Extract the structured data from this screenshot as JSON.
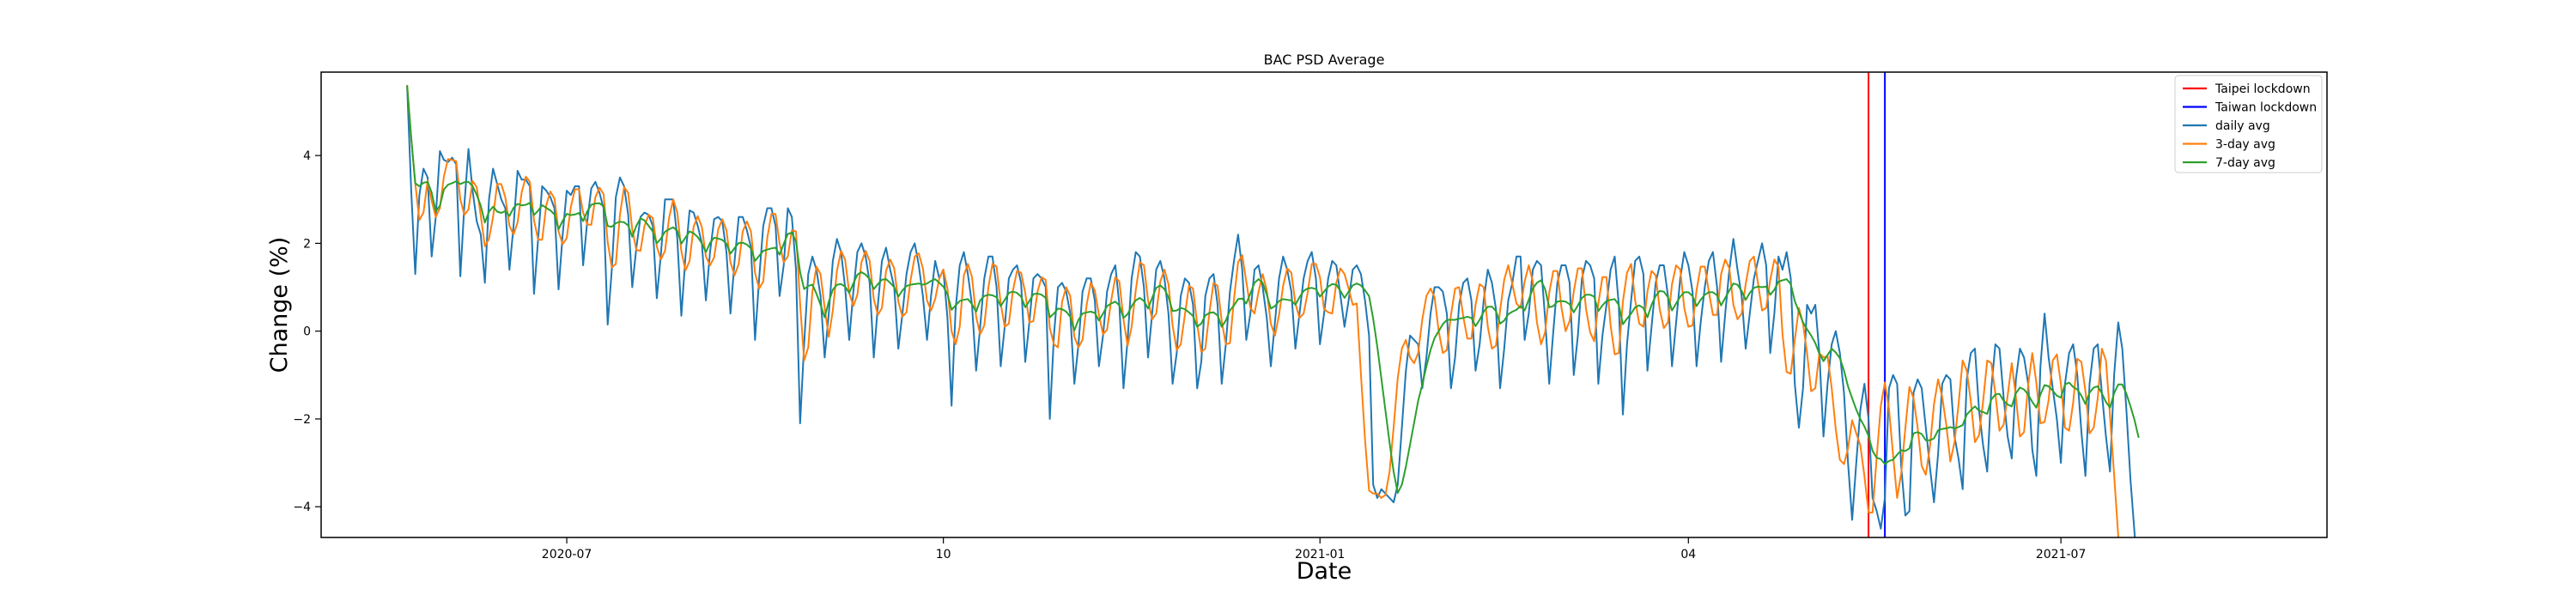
{
  "chart_data": {
    "type": "line",
    "title": "BAC PSD Average",
    "xlabel": "Date",
    "ylabel": "Change (%)",
    "x_range": [
      "2020-05-02",
      "2021-09-04"
    ],
    "ylim": [
      -4.7,
      5.9
    ],
    "x_ticks": [
      {
        "date": "2020-07-01",
        "label": "2020-07"
      },
      {
        "date": "2020-10-01",
        "label": "10"
      },
      {
        "date": "2021-01-01",
        "label": "2021-01"
      },
      {
        "date": "2021-04-01",
        "label": "04"
      },
      {
        "date": "2021-07-01",
        "label": "2021-07"
      }
    ],
    "y_ticks": [
      -4,
      -2,
      0,
      2,
      4
    ],
    "grid": false,
    "legend_position": "top-right",
    "vertical_lines": [
      {
        "name": "Taipei lockdown",
        "date": "2021-05-15",
        "color": "#ff0000"
      },
      {
        "name": "Taiwan lockdown",
        "date": "2021-05-19",
        "color": "#0000ff"
      }
    ],
    "series": [
      {
        "name": "daily avg",
        "color": "#1f77b4"
      },
      {
        "name": "3-day avg",
        "color": "#ff7f0e"
      },
      {
        "name": "7-day avg",
        "color": "#2ca02c"
      }
    ],
    "daily_start": "2020-05-23",
    "daily_values": [
      5.6,
      3.2,
      1.3,
      3.1,
      3.7,
      3.5,
      1.7,
      2.6,
      4.1,
      3.9,
      3.85,
      3.95,
      3.8,
      1.25,
      2.9,
      4.15,
      3.2,
      2.5,
      2.2,
      1.1,
      3.0,
      3.7,
      3.35,
      3.0,
      2.8,
      1.4,
      2.4,
      3.65,
      3.45,
      3.45,
      3.3,
      0.85,
      2.1,
      3.3,
      3.2,
      3.05,
      2.8,
      0.95,
      2.2,
      3.2,
      3.1,
      3.3,
      3.3,
      1.5,
      2.5,
      3.25,
      3.4,
      3.15,
      2.8,
      0.15,
      1.4,
      3.05,
      3.5,
      3.3,
      2.65,
      1.0,
      1.9,
      2.6,
      2.7,
      2.65,
      2.4,
      0.75,
      1.75,
      3.0,
      3.0,
      3.0,
      2.1,
      0.35,
      1.7,
      2.75,
      2.7,
      2.4,
      2.0,
      0.7,
      1.8,
      2.55,
      2.6,
      2.5,
      1.8,
      0.4,
      1.6,
      2.6,
      2.6,
      2.3,
      1.9,
      -0.2,
      1.2,
      2.4,
      2.8,
      2.8,
      2.4,
      0.8,
      1.5,
      2.8,
      2.6,
      1.4,
      -2.1,
      -0.3,
      1.3,
      1.7,
      1.4,
      0.8,
      -0.6,
      0.4,
      1.6,
      2.1,
      1.8,
      1.0,
      -0.2,
      0.9,
      1.8,
      2.0,
      1.7,
      1.1,
      -0.6,
      0.6,
      1.6,
      1.9,
      1.4,
      1.0,
      -0.4,
      0.4,
      1.3,
      1.8,
      2.0,
      1.5,
      0.8,
      -0.2,
      0.8,
      1.6,
      1.2,
      1.4,
      0.3,
      -1.7,
      0.5,
      1.5,
      1.8,
      1.3,
      0.6,
      -0.9,
      0.1,
      1.2,
      1.7,
      1.7,
      1.0,
      -0.8,
      0.1,
      1.2,
      1.4,
      1.5,
      1.1,
      -0.7,
      0.2,
      1.2,
      1.3,
      1.2,
      1.0,
      -2.0,
      -0.1,
      1.0,
      1.1,
      0.9,
      0.4,
      -1.2,
      -0.3,
      0.9,
      1.2,
      1.2,
      0.7,
      -0.8,
      -0.1,
      0.9,
      1.3,
      1.5,
      0.6,
      -1.3,
      -0.2,
      1.2,
      1.8,
      1.7,
      1.0,
      -0.6,
      0.4,
      1.4,
      1.6,
      1.2,
      0.4,
      -1.2,
      -0.5,
      0.8,
      1.2,
      1.1,
      0.6,
      -1.3,
      -0.7,
      0.8,
      1.2,
      1.3,
      0.6,
      -1.2,
      -0.3,
      0.9,
      1.6,
      2.2,
      1.4,
      -0.2,
      0.4,
      1.4,
      1.5,
      1.0,
      0.3,
      -0.8,
      0.2,
      1.2,
      1.7,
      1.4,
      0.9,
      -0.4,
      0.4,
      1.2,
      1.6,
      1.8,
      1.2,
      -0.3,
      0.4,
      1.2,
      1.6,
      1.5,
      0.8,
      0.1,
      0.7,
      1.4,
      1.5,
      1.3,
      0.7,
      -0.1,
      -3.5,
      -3.8,
      -3.6,
      -3.7,
      -3.8,
      -3.9,
      -3.5,
      -2.2,
      -0.9,
      -0.1,
      -0.2,
      -0.3,
      -1.3,
      -0.6,
      0.4,
      1.0,
      1.0,
      0.9,
      0.4,
      -1.3,
      -0.6,
      0.6,
      1.1,
      1.2,
      0.7,
      -0.9,
      -0.3,
      0.7,
      1.4,
      1.1,
      0.5,
      -1.3,
      -0.4,
      0.7,
      1.1,
      1.7,
      1.7,
      -0.2,
      0.4,
      1.4,
      1.6,
      1.5,
      0.3,
      -1.2,
      0.0,
      1.1,
      1.5,
      1.5,
      1.1,
      -1.0,
      -0.1,
      1.2,
      1.6,
      1.5,
      1.2,
      -1.2,
      -0.1,
      0.6,
      1.4,
      1.7,
      0.6,
      -1.9,
      -0.3,
      0.7,
      1.6,
      1.7,
      1.3,
      -0.9,
      0.1,
      1.1,
      1.5,
      1.5,
      0.8,
      -0.8,
      0.2,
      1.2,
      1.8,
      1.5,
      0.9,
      -0.8,
      0.2,
      1.0,
      1.6,
      1.8,
      1.0,
      -0.7,
      0.4,
      1.4,
      2.1,
      1.4,
      0.8,
      -0.4,
      0.4,
      1.2,
      1.6,
      2.0,
      1.5,
      -0.5,
      0.4,
      1.7,
      1.4,
      1.8,
      1.2,
      -1.2,
      -2.2,
      -1.3,
      0.6,
      0.4,
      0.6,
      -0.5,
      -2.4,
      -1.2,
      -0.3,
      0.0,
      -0.5,
      -1.4,
      -3.0,
      -4.3,
      -3.0,
      -1.8,
      -1.2,
      -2.0,
      -3.8,
      -4.1,
      -4.5,
      -3.8,
      -1.3,
      -1.0,
      -1.2,
      -3.1,
      -4.2,
      -4.1,
      -1.4,
      -1.1,
      -1.3,
      -2.2,
      -3.1,
      -3.9,
      -2.8,
      -1.2,
      -1.0,
      -1.1,
      -2.4,
      -2.9,
      -3.6,
      -1.1,
      -0.5,
      -0.4,
      -1.8,
      -2.6,
      -3.2,
      -1.3,
      -0.3,
      -0.4,
      -1.5,
      -2.4,
      -2.9,
      -1.1,
      -0.4,
      -0.6,
      -1.2,
      -2.7,
      -3.3,
      -0.8,
      0.4,
      -0.6,
      -1.3,
      -2.0,
      -3.0,
      -1.2,
      -0.5,
      -0.3,
      -1.0,
      -2.3,
      -3.3,
      -1.2,
      -0.4,
      -0.3,
      -1.4,
      -2.4,
      -3.2,
      -1.0,
      0.2,
      -0.4,
      -1.8,
      -3.4,
      -4.6,
      -6.0
    ],
    "avg3_start": "2020-05-23",
    "avg3_values": [
      5.6,
      4.4,
      3.37,
      2.53,
      2.7,
      3.43,
      2.97,
      2.6,
      2.8,
      3.53,
      3.92,
      3.9,
      3.87,
      3.0,
      2.65,
      2.77,
      3.42,
      3.28,
      2.63,
      1.93,
      2.1,
      2.6,
      3.35,
      3.35,
      3.05,
      2.4,
      2.2,
      2.48,
      3.17,
      3.52,
      3.4,
      2.53,
      2.08,
      2.08,
      2.87,
      3.18,
      3.02,
      2.27,
      1.98,
      2.12,
      2.83,
      3.23,
      3.23,
      2.7,
      2.43,
      2.42,
      3.05,
      3.27,
      3.12,
      2.03,
      1.45,
      1.53,
      2.65,
      3.28,
      3.15,
      2.32,
      1.85,
      1.83,
      2.4,
      2.65,
      2.58,
      1.93,
      1.63,
      1.83,
      2.58,
      3.0,
      2.7,
      1.82,
      1.38,
      1.6,
      2.38,
      2.62,
      2.37,
      1.7,
      1.5,
      1.68,
      2.32,
      2.55,
      2.3,
      1.57,
      1.27,
      1.53,
      2.27,
      2.5,
      2.27,
      1.33,
      0.97,
      1.13,
      2.13,
      2.67,
      2.67,
      2.0,
      1.57,
      1.7,
      2.3,
      2.27,
      0.63,
      -0.67,
      -0.37,
      0.9,
      1.47,
      1.3,
      0.53,
      -0.13,
      0.47,
      1.37,
      1.83,
      1.63,
      0.87,
      0.57,
      0.83,
      1.57,
      1.83,
      1.6,
      0.73,
      0.37,
      0.53,
      1.37,
      1.63,
      1.43,
      0.67,
      0.33,
      0.43,
      1.17,
      1.7,
      1.77,
      1.43,
      0.7,
      0.47,
      0.73,
      1.2,
      1.4,
      0.97,
      -0.0,
      -0.3,
      0.1,
      1.27,
      1.53,
      1.23,
      0.33,
      -0.07,
      0.13,
      1.0,
      1.53,
      1.47,
      0.63,
      0.1,
      0.17,
      0.93,
      1.37,
      1.33,
      0.87,
      0.2,
      0.23,
      0.9,
      1.23,
      1.17,
      0.07,
      -0.3,
      -0.37,
      0.67,
      1.0,
      0.8,
      -0.13,
      -0.37,
      -0.2,
      0.6,
      1.1,
      0.93,
      0.37,
      -0.07,
      0.03,
      0.7,
      1.23,
      1.13,
      0.27,
      -0.33,
      0.1,
      0.93,
      1.57,
      1.5,
      0.7,
      0.27,
      0.4,
      1.13,
      1.4,
      1.07,
      0.13,
      -0.43,
      -0.3,
      0.37,
      1.03,
      0.97,
      0.17,
      -0.47,
      -0.4,
      0.43,
      1.1,
      1.03,
      0.23,
      -0.3,
      -0.27,
      0.73,
      1.57,
      1.73,
      1.13,
      0.53,
      0.4,
      0.9,
      1.3,
      0.93,
      0.17,
      -0.1,
      0.37,
      1.03,
      1.43,
      1.33,
      0.63,
      0.3,
      0.4,
      0.87,
      1.53,
      1.53,
      1.23,
      0.5,
      0.43,
      0.4,
      1.1,
      1.43,
      1.3,
      0.97,
      0.6,
      0.63,
      -0.97,
      -2.47,
      -3.63,
      -3.7,
      -3.7,
      -3.8,
      -3.73,
      -3.2,
      -2.2,
      -1.07,
      -0.4,
      -0.2,
      -0.6,
      -0.73,
      -0.5,
      0.27,
      0.8,
      0.97,
      0.77,
      0.0,
      -0.5,
      -0.43,
      0.37,
      0.97,
      1.0,
      0.33,
      -0.17,
      -0.17,
      0.6,
      1.07,
      1.0,
      0.1,
      -0.4,
      -0.33,
      0.47,
      1.17,
      1.5,
      1.07,
      0.63,
      0.53,
      1.13,
      1.5,
      1.13,
      0.2,
      -0.3,
      -0.03,
      0.87,
      1.37,
      1.37,
      0.53,
      0.0,
      0.23,
      0.9,
      1.43,
      1.43,
      0.5,
      -0.03,
      -0.23,
      0.63,
      1.23,
      1.23,
      0.13,
      -0.53,
      -0.5,
      0.67,
      1.33,
      1.53,
      0.7,
      0.17,
      0.1,
      0.9,
      1.37,
      1.27,
      0.5,
      0.07,
      0.2,
      1.07,
      1.5,
      1.4,
      0.53,
      0.1,
      0.13,
      0.93,
      1.47,
      1.47,
      0.9,
      0.37,
      0.37,
      1.3,
      1.63,
      1.43,
      0.6,
      0.27,
      0.4,
      1.07,
      1.6,
      1.7,
      1.1,
      0.47,
      0.53,
      1.17,
      1.63,
      1.47,
      -0.07,
      -0.93,
      -0.97,
      -0.2,
      0.53,
      0.17,
      -0.5,
      -1.37,
      -1.3,
      -0.5,
      -0.6,
      -0.57,
      -1.3,
      -2.23,
      -2.93,
      -3.03,
      -2.67,
      -2.03,
      -2.33,
      -2.6,
      -3.3,
      -4.13,
      -4.13,
      -2.87,
      -1.7,
      -1.17,
      -1.77,
      -2.83,
      -3.8,
      -3.23,
      -2.2,
      -1.27,
      -1.53,
      -2.2,
      -3.07,
      -3.27,
      -2.63,
      -1.67,
      -1.1,
      -1.5,
      -2.13,
      -2.97,
      -2.53,
      -1.67,
      -0.67,
      -0.9,
      -1.6,
      -2.53,
      -2.37,
      -1.6,
      -0.67,
      -0.73,
      -1.43,
      -2.27,
      -2.13,
      -1.47,
      -0.73,
      -1.5,
      -2.4,
      -2.3,
      -1.23,
      -0.5,
      -1.17,
      -2.1,
      -2.07,
      -1.57,
      -0.67,
      -0.53,
      -1.2,
      -2.2,
      -2.27,
      -1.63,
      -0.63,
      -0.7,
      -1.37,
      -2.33,
      -2.2,
      -1.53,
      -0.4,
      -0.67,
      -1.93,
      -3.27,
      -4.67,
      -5.9
    ]
  }
}
